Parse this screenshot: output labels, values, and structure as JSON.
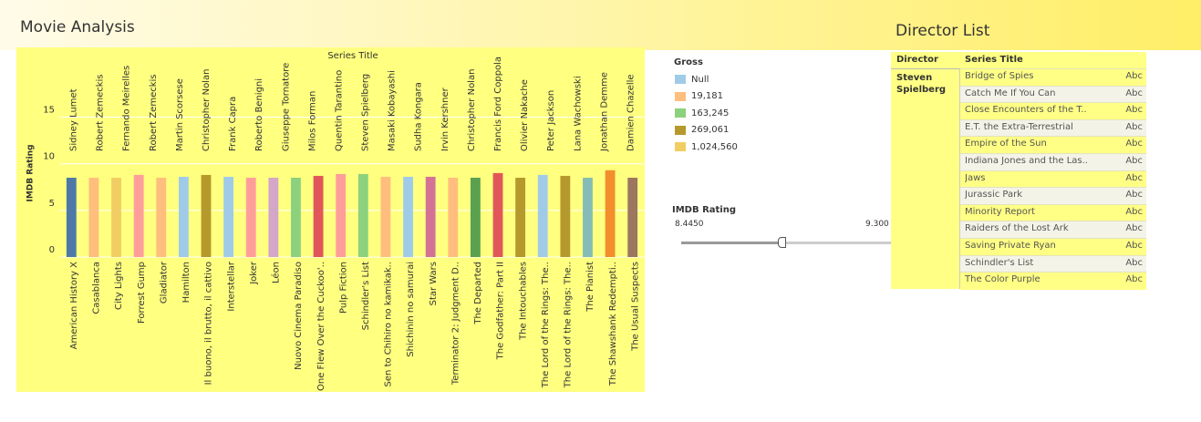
{
  "header": {
    "title": "Movie Analysis",
    "right_title": "Director List"
  },
  "chart_data": {
    "type": "bar",
    "title": "Series Title",
    "y_label": "IMDB Rating",
    "categories": [
      "American History X",
      "Casablanca",
      "City Lights",
      "Forrest Gump",
      "Gladiator",
      "Hamilton",
      "Il buono, il brutto, il cattivo",
      "Interstellar",
      "Joker",
      "Léon",
      "Nuovo Cinema Paradiso",
      "One Flew Over the Cuckoo'..",
      "Pulp Fiction",
      "Schindler's List",
      "Sen to Chihiro no kamikak..",
      "Shichinin no samurai",
      "Star Wars",
      "Terminator 2: Judgment D..",
      "The Departed",
      "The Godfather: Part II",
      "The Intouchables",
      "The Lord of the Rings: The..",
      "The Lord of the Rings: The..",
      "The Pianist",
      "The Shawshank Redempti..",
      "The Usual Suspects"
    ],
    "values": [
      8.5,
      8.5,
      8.5,
      8.8,
      8.5,
      8.6,
      8.8,
      8.6,
      8.5,
      8.5,
      8.5,
      8.7,
      8.9,
      8.9,
      8.6,
      8.6,
      8.6,
      8.5,
      8.5,
      9.0,
      8.5,
      8.8,
      8.7,
      8.5,
      9.3,
      8.5
    ],
    "colors": [
      "#4e79a7",
      "#ffbe7d",
      "#f1ce63",
      "#ff9d9a",
      "#ffbe7d",
      "#a0cbe8",
      "#b6992d",
      "#a0cbe8",
      "#ff9d9a",
      "#d4a6c8",
      "#8cd17d",
      "#e15759",
      "#ff9d9a",
      "#8cd17d",
      "#ffbe7d",
      "#a0cbe8",
      "#d37295",
      "#ffbe7d",
      "#59a14f",
      "#e15759",
      "#b6992d",
      "#a0cbe8",
      "#b6992d",
      "#86bcb6",
      "#f28e2b",
      "#9d7660"
    ],
    "top_labels": [
      "Sidney Lumet",
      "Robert Zemeckis",
      "Fernando Meirelles",
      "Robert Zemeckis",
      "Martin Scorsese",
      "Christopher Nolan",
      "Frank Capra",
      "Roberto Benigni",
      "Giuseppe Tornatore",
      "Milos Forman",
      "Quentin Tarantino",
      "Steven Spielberg",
      "Masaki Kobayashi",
      "Sudha Kongara",
      "Irvin Kershner",
      "Christopher Nolan",
      "Francis Ford Coppola",
      "Olivier Nakache",
      "Peter Jackson",
      "Lana Wachowski",
      "Jonathan Demme",
      "Damien Chazelle"
    ],
    "ylim": [
      0,
      17
    ],
    "yticks": [
      0,
      5,
      10,
      15
    ],
    "grid": true,
    "background": "#ffff80"
  },
  "legend": {
    "title": "Gross",
    "items": [
      {
        "label": "Null",
        "color": "#a0cbe8"
      },
      {
        "label": "19,181",
        "color": "#ffbe7d"
      },
      {
        "label": "163,245",
        "color": "#8cd17d"
      },
      {
        "label": "269,061",
        "color": "#b6992d"
      },
      {
        "label": "1,024,560",
        "color": "#f1ce63"
      }
    ]
  },
  "filter": {
    "title": "IMDB Rating",
    "min": "8.4450",
    "max": "9.300"
  },
  "table": {
    "headers": [
      "Director",
      "Series Title"
    ],
    "director": "Steven Spielberg",
    "marker": "Abc",
    "rows": [
      "Bridge of Spies",
      "Catch Me If You Can",
      "Close Encounters of the T..",
      "E.T. the Extra-Terrestrial",
      "Empire of the Sun",
      "Indiana Jones and the Las..",
      "Jaws",
      "Jurassic Park",
      "Minority Report",
      "Raiders of the Lost Ark",
      "Saving Private Ryan",
      "Schindler's List",
      "The Color Purple"
    ]
  }
}
